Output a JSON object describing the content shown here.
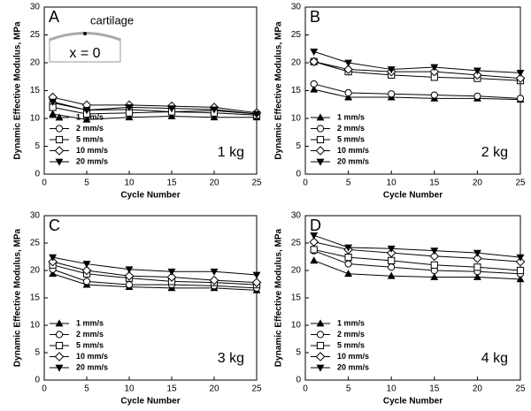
{
  "chart_data": [
    {
      "type": "line",
      "panel_label": "A",
      "annotation": "1 kg",
      "inset": {
        "label": "cartilage",
        "position_label": "x = 0"
      },
      "x": [
        1,
        5,
        10,
        15,
        20,
        25
      ],
      "xlabel": "Cycle Number",
      "ylabel": "Dynamic Effective Modulus, MPa",
      "xlim": [
        0,
        25
      ],
      "xticks": [
        0,
        5,
        10,
        15,
        20,
        25
      ],
      "ylim": [
        0,
        30
      ],
      "yticks": [
        0,
        5,
        10,
        15,
        20,
        25,
        30
      ],
      "legend": "lower left",
      "series": [
        {
          "name": "1 mm/s",
          "marker": "triangle-up",
          "color": "#000000",
          "values": [
            10.8,
            9.8,
            10.2,
            10.4,
            10.2,
            10.2
          ]
        },
        {
          "name": "2 mm/s",
          "marker": "circle",
          "color": "#000000",
          "values": [
            12.8,
            11.5,
            11.6,
            11.2,
            11.4,
            10.8
          ]
        },
        {
          "name": "5 mm/s",
          "marker": "square",
          "color": "#000000",
          "values": [
            12.0,
            10.8,
            11.0,
            11.2,
            11.0,
            10.6
          ]
        },
        {
          "name": "10 mm/s",
          "marker": "diamond",
          "color": "#000000",
          "values": [
            13.8,
            12.4,
            12.4,
            12.2,
            12.0,
            11.0
          ]
        },
        {
          "name": "20 mm/s",
          "marker": "triangle-down",
          "color": "#000000",
          "values": [
            13.0,
            11.5,
            12.0,
            11.8,
            11.6,
            10.8
          ]
        }
      ]
    },
    {
      "type": "line",
      "panel_label": "B",
      "annotation": "2 kg",
      "x": [
        1,
        5,
        10,
        15,
        20,
        25
      ],
      "xlabel": "Cycle Number",
      "ylabel": "Dynamic Effective Modulus, MPa",
      "xlim": [
        0,
        25
      ],
      "xticks": [
        0,
        5,
        10,
        15,
        20,
        25
      ],
      "ylim": [
        0,
        30
      ],
      "yticks": [
        0,
        5,
        10,
        15,
        20,
        25,
        30
      ],
      "legend": "lower left",
      "series": [
        {
          "name": "1 mm/s",
          "marker": "triangle-up",
          "color": "#000000",
          "values": [
            15.2,
            13.8,
            13.8,
            13.6,
            13.6,
            13.4
          ]
        },
        {
          "name": "2 mm/s",
          "marker": "circle",
          "color": "#000000",
          "values": [
            16.2,
            14.6,
            14.4,
            14.2,
            14.0,
            13.6
          ]
        },
        {
          "name": "5 mm/s",
          "marker": "square",
          "color": "#000000",
          "values": [
            20.2,
            18.4,
            17.8,
            17.4,
            17.2,
            16.8
          ]
        },
        {
          "name": "10 mm/s",
          "marker": "diamond",
          "color": "#000000",
          "values": [
            20.2,
            18.8,
            18.4,
            18.4,
            17.8,
            17.2
          ]
        },
        {
          "name": "20 mm/s",
          "marker": "triangle-down",
          "color": "#000000",
          "values": [
            22.0,
            20.0,
            18.8,
            19.2,
            18.6,
            18.2
          ]
        }
      ]
    },
    {
      "type": "line",
      "panel_label": "C",
      "annotation": "3 kg",
      "x": [
        1,
        5,
        10,
        15,
        20,
        25
      ],
      "xlabel": "Cycle Number",
      "ylabel": "Dynamic Effective Modulus, MPa",
      "xlim": [
        0,
        25
      ],
      "xticks": [
        0,
        5,
        10,
        15,
        20,
        25
      ],
      "ylim": [
        0,
        30
      ],
      "yticks": [
        0,
        5,
        10,
        15,
        20,
        25,
        30
      ],
      "legend": "lower left",
      "series": [
        {
          "name": "1 mm/s",
          "marker": "triangle-up",
          "color": "#000000",
          "values": [
            19.4,
            17.4,
            17.0,
            16.8,
            16.8,
            16.4
          ]
        },
        {
          "name": "2 mm/s",
          "marker": "circle",
          "color": "#000000",
          "values": [
            20.2,
            18.0,
            17.4,
            17.4,
            17.2,
            16.8
          ]
        },
        {
          "name": "5 mm/s",
          "marker": "square",
          "color": "#000000",
          "values": [
            21.0,
            19.4,
            18.6,
            18.0,
            17.8,
            17.4
          ]
        },
        {
          "name": "10 mm/s",
          "marker": "diamond",
          "color": "#000000",
          "values": [
            21.6,
            20.0,
            19.0,
            18.8,
            18.2,
            17.8
          ]
        },
        {
          "name": "20 mm/s",
          "marker": "triangle-down",
          "color": "#000000",
          "values": [
            22.4,
            21.2,
            20.2,
            19.8,
            19.8,
            19.2
          ]
        }
      ]
    },
    {
      "type": "line",
      "panel_label": "D",
      "annotation": "4 kg",
      "x": [
        1,
        5,
        10,
        15,
        20,
        25
      ],
      "xlabel": "Cycle Number",
      "ylabel": "Dynamic Effective Modulus, MPa",
      "xlim": [
        0,
        25
      ],
      "xticks": [
        0,
        5,
        10,
        15,
        20,
        25
      ],
      "ylim": [
        0,
        30
      ],
      "yticks": [
        0,
        5,
        10,
        15,
        20,
        25,
        30
      ],
      "legend": "lower left",
      "series": [
        {
          "name": "1 mm/s",
          "marker": "triangle-up",
          "color": "#000000",
          "values": [
            21.8,
            19.4,
            19.0,
            18.8,
            18.8,
            18.4
          ]
        },
        {
          "name": "2 mm/s",
          "marker": "circle",
          "color": "#000000",
          "values": [
            23.6,
            21.2,
            20.6,
            20.0,
            19.8,
            19.4
          ]
        },
        {
          "name": "5 mm/s",
          "marker": "square",
          "color": "#000000",
          "values": [
            23.8,
            22.4,
            21.8,
            21.0,
            20.6,
            20.0
          ]
        },
        {
          "name": "10 mm/s",
          "marker": "diamond",
          "color": "#000000",
          "values": [
            25.2,
            23.8,
            23.2,
            22.6,
            22.2,
            21.6
          ]
        },
        {
          "name": "20 mm/s",
          "marker": "triangle-down",
          "color": "#000000",
          "values": [
            26.4,
            24.2,
            24.0,
            23.6,
            23.2,
            22.4
          ]
        }
      ]
    }
  ]
}
